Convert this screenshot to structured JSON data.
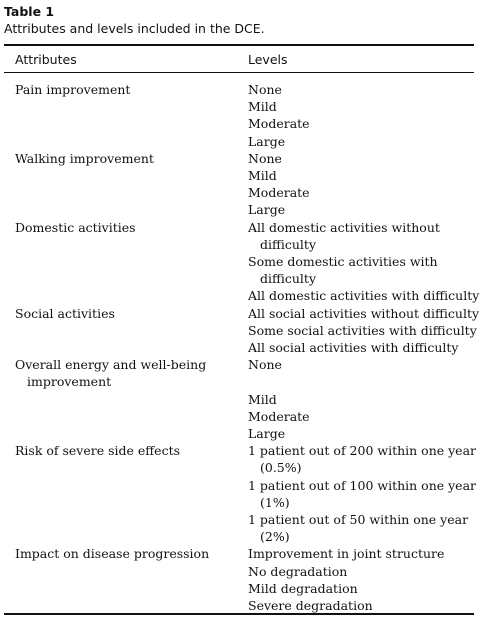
{
  "table": {
    "title": "Table 1",
    "caption": "Attributes and levels included in the DCE.",
    "headers": {
      "attributes": "Attributes",
      "levels": "Levels"
    },
    "rows": [
      {
        "attribute": [
          "Pain improvement"
        ],
        "levels": [
          [
            "None"
          ],
          [
            "Mild"
          ],
          [
            "Moderate"
          ],
          [
            "Large"
          ]
        ]
      },
      {
        "attribute": [
          "Walking improvement"
        ],
        "levels": [
          [
            "None"
          ],
          [
            "Mild"
          ],
          [
            "Moderate"
          ],
          [
            "Large"
          ]
        ]
      },
      {
        "attribute": [
          "Domestic activities"
        ],
        "levels": [
          [
            "All domestic activities without",
            "difficulty"
          ],
          [
            "Some domestic activities with",
            "difficulty"
          ],
          [
            "All domestic activities with difficulty"
          ]
        ]
      },
      {
        "attribute": [
          "Social activities"
        ],
        "levels": [
          [
            "All social activities without difficulty"
          ],
          [
            "Some social activities with difficulty"
          ],
          [
            "All social activities with difficulty"
          ]
        ]
      },
      {
        "attribute": [
          "Overall energy and well-being",
          "improvement"
        ],
        "levels": [
          [
            "None"
          ],
          [
            ""
          ],
          [
            "Mild"
          ],
          [
            "Moderate"
          ],
          [
            "Large"
          ]
        ]
      },
      {
        "attribute": [
          "Risk of severe side effects"
        ],
        "levels": [
          [
            "1 patient out of 200 within one year",
            "(0.5%)"
          ],
          [
            "1 patient out of 100 within one year",
            "(1%)"
          ],
          [
            "1 patient out of 50 within one year",
            "(2%)"
          ]
        ]
      },
      {
        "attribute": [
          "Impact on disease progression"
        ],
        "levels": [
          [
            "Improvement in joint structure"
          ],
          [
            "No degradation"
          ],
          [
            "Mild degradation"
          ],
          [
            "Severe degradation"
          ]
        ]
      }
    ]
  }
}
